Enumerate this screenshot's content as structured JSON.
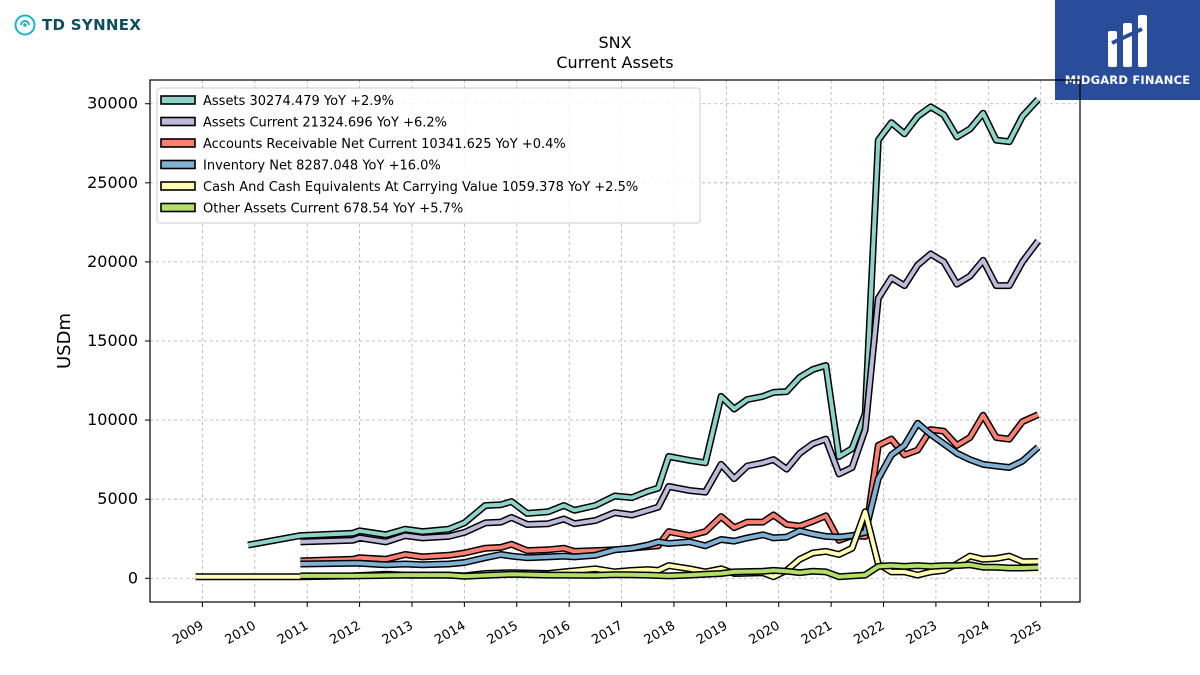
{
  "brand": {
    "name": "TD SYNNEX",
    "icon": "td-synnex-logo-icon"
  },
  "badge": {
    "name": "MIDGARD FINANCE",
    "icon": "midgard-logo-icon"
  },
  "chart_data": {
    "type": "line",
    "title": "SNX",
    "subtitle": "Current  Assets",
    "ylabel": "USDm",
    "xlabel": "",
    "xlim": [
      2008.0,
      2025.75
    ],
    "ylim": [
      -1500,
      31500
    ],
    "yticks": [
      0,
      5000,
      10000,
      15000,
      20000,
      25000,
      30000
    ],
    "xticks": [
      2009,
      2010,
      2011,
      2012,
      2013,
      2014,
      2015,
      2016,
      2017,
      2018,
      2019,
      2020,
      2021,
      2022,
      2023,
      2024,
      2025
    ],
    "grid": true,
    "legend_position": "top-left",
    "series": [
      {
        "name": "Assets",
        "legend": "Assets  30274.479 YoY +2.9%",
        "color": "#8dd3c7",
        "points": [
          [
            2009.87,
            2100
          ],
          [
            2010.87,
            2700
          ],
          [
            2011.87,
            2850
          ],
          [
            2012.0,
            3000
          ],
          [
            2012.5,
            2750
          ],
          [
            2012.87,
            3100
          ],
          [
            2013.2,
            2950
          ],
          [
            2013.7,
            3100
          ],
          [
            2014.0,
            3500
          ],
          [
            2014.4,
            4600
          ],
          [
            2014.7,
            4650
          ],
          [
            2014.9,
            4850
          ],
          [
            2015.2,
            4100
          ],
          [
            2015.6,
            4200
          ],
          [
            2015.9,
            4600
          ],
          [
            2016.1,
            4300
          ],
          [
            2016.5,
            4600
          ],
          [
            2016.87,
            5200
          ],
          [
            2017.2,
            5100
          ],
          [
            2017.5,
            5500
          ],
          [
            2017.7,
            5700
          ],
          [
            2017.9,
            7700
          ],
          [
            2018.3,
            7450
          ],
          [
            2018.6,
            7300
          ],
          [
            2018.9,
            11500
          ],
          [
            2019.15,
            10700
          ],
          [
            2019.4,
            11300
          ],
          [
            2019.7,
            11500
          ],
          [
            2019.9,
            11750
          ],
          [
            2020.15,
            11800
          ],
          [
            2020.4,
            12700
          ],
          [
            2020.65,
            13200
          ],
          [
            2020.9,
            13450
          ],
          [
            2021.15,
            7700
          ],
          [
            2021.4,
            8200
          ],
          [
            2021.65,
            10400
          ],
          [
            2021.9,
            27700
          ],
          [
            2022.15,
            28800
          ],
          [
            2022.4,
            28100
          ],
          [
            2022.65,
            29200
          ],
          [
            2022.9,
            29800
          ],
          [
            2023.15,
            29300
          ],
          [
            2023.4,
            27900
          ],
          [
            2023.65,
            28400
          ],
          [
            2023.9,
            29400
          ],
          [
            2024.15,
            27700
          ],
          [
            2024.4,
            27600
          ],
          [
            2024.65,
            29200
          ],
          [
            2024.95,
            30274
          ]
        ]
      },
      {
        "name": "Assets Current",
        "legend": "Assets Current  21324.696 YoY +6.2%",
        "color": "#bebada",
        "points": [
          [
            2010.87,
            2300
          ],
          [
            2011.87,
            2400
          ],
          [
            2012.0,
            2550
          ],
          [
            2012.5,
            2300
          ],
          [
            2012.87,
            2700
          ],
          [
            2013.2,
            2550
          ],
          [
            2013.7,
            2650
          ],
          [
            2014.0,
            2900
          ],
          [
            2014.4,
            3500
          ],
          [
            2014.7,
            3550
          ],
          [
            2014.9,
            3850
          ],
          [
            2015.2,
            3400
          ],
          [
            2015.6,
            3450
          ],
          [
            2015.9,
            3750
          ],
          [
            2016.1,
            3450
          ],
          [
            2016.5,
            3650
          ],
          [
            2016.87,
            4150
          ],
          [
            2017.2,
            4000
          ],
          [
            2017.5,
            4300
          ],
          [
            2017.7,
            4500
          ],
          [
            2017.9,
            5800
          ],
          [
            2018.3,
            5550
          ],
          [
            2018.6,
            5450
          ],
          [
            2018.9,
            7200
          ],
          [
            2019.15,
            6300
          ],
          [
            2019.4,
            7100
          ],
          [
            2019.7,
            7300
          ],
          [
            2019.9,
            7500
          ],
          [
            2020.15,
            6900
          ],
          [
            2020.4,
            7900
          ],
          [
            2020.65,
            8500
          ],
          [
            2020.9,
            8800
          ],
          [
            2021.15,
            6600
          ],
          [
            2021.4,
            7000
          ],
          [
            2021.65,
            9400
          ],
          [
            2021.9,
            17700
          ],
          [
            2022.15,
            19000
          ],
          [
            2022.4,
            18500
          ],
          [
            2022.65,
            19800
          ],
          [
            2022.9,
            20500
          ],
          [
            2023.15,
            20000
          ],
          [
            2023.4,
            18600
          ],
          [
            2023.65,
            19100
          ],
          [
            2023.9,
            20100
          ],
          [
            2024.15,
            18500
          ],
          [
            2024.4,
            18500
          ],
          [
            2024.65,
            20000
          ],
          [
            2024.95,
            21324
          ]
        ]
      },
      {
        "name": "Accounts Receivable Net Current",
        "legend": "Accounts Receivable Net Current  10341.625 YoY +0.4%",
        "color": "#fb8072",
        "points": [
          [
            2010.87,
            1100
          ],
          [
            2011.87,
            1200
          ],
          [
            2012.0,
            1300
          ],
          [
            2012.5,
            1200
          ],
          [
            2012.87,
            1500
          ],
          [
            2013.2,
            1350
          ],
          [
            2013.7,
            1450
          ],
          [
            2014.0,
            1600
          ],
          [
            2014.4,
            1900
          ],
          [
            2014.7,
            1950
          ],
          [
            2014.9,
            2150
          ],
          [
            2015.2,
            1750
          ],
          [
            2015.6,
            1800
          ],
          [
            2015.9,
            1900
          ],
          [
            2016.1,
            1700
          ],
          [
            2016.5,
            1750
          ],
          [
            2016.87,
            1800
          ],
          [
            2017.2,
            1900
          ],
          [
            2017.5,
            2000
          ],
          [
            2017.7,
            2050
          ],
          [
            2017.9,
            2950
          ],
          [
            2018.3,
            2700
          ],
          [
            2018.6,
            2950
          ],
          [
            2018.9,
            3900
          ],
          [
            2019.15,
            3200
          ],
          [
            2019.4,
            3550
          ],
          [
            2019.7,
            3550
          ],
          [
            2019.9,
            4000
          ],
          [
            2020.15,
            3400
          ],
          [
            2020.4,
            3300
          ],
          [
            2020.65,
            3600
          ],
          [
            2020.9,
            3950
          ],
          [
            2021.15,
            2400
          ],
          [
            2021.4,
            2700
          ],
          [
            2021.65,
            2650
          ],
          [
            2021.9,
            8400
          ],
          [
            2022.15,
            8800
          ],
          [
            2022.4,
            7800
          ],
          [
            2022.65,
            8100
          ],
          [
            2022.9,
            9400
          ],
          [
            2023.15,
            9300
          ],
          [
            2023.4,
            8400
          ],
          [
            2023.65,
            8900
          ],
          [
            2023.9,
            10300
          ],
          [
            2024.15,
            8900
          ],
          [
            2024.4,
            8800
          ],
          [
            2024.65,
            9900
          ],
          [
            2024.95,
            10342
          ]
        ]
      },
      {
        "name": "Inventory Net",
        "legend": "Inventory Net  8287.048 YoY +16.0%",
        "color": "#80b1d3",
        "points": [
          [
            2010.87,
            900
          ],
          [
            2011.87,
            950
          ],
          [
            2012.0,
            950
          ],
          [
            2012.5,
            850
          ],
          [
            2012.87,
            900
          ],
          [
            2013.2,
            850
          ],
          [
            2013.7,
            900
          ],
          [
            2014.0,
            1000
          ],
          [
            2014.4,
            1300
          ],
          [
            2014.7,
            1500
          ],
          [
            2014.9,
            1400
          ],
          [
            2015.2,
            1300
          ],
          [
            2015.6,
            1350
          ],
          [
            2015.9,
            1400
          ],
          [
            2016.1,
            1350
          ],
          [
            2016.5,
            1450
          ],
          [
            2016.87,
            1800
          ],
          [
            2017.2,
            1900
          ],
          [
            2017.5,
            2100
          ],
          [
            2017.7,
            2300
          ],
          [
            2017.9,
            2200
          ],
          [
            2018.3,
            2300
          ],
          [
            2018.6,
            2050
          ],
          [
            2018.9,
            2450
          ],
          [
            2019.15,
            2350
          ],
          [
            2019.4,
            2550
          ],
          [
            2019.7,
            2750
          ],
          [
            2019.9,
            2550
          ],
          [
            2020.15,
            2600
          ],
          [
            2020.4,
            3000
          ],
          [
            2020.65,
            2800
          ],
          [
            2020.9,
            2650
          ],
          [
            2021.15,
            2600
          ],
          [
            2021.4,
            2700
          ],
          [
            2021.65,
            2900
          ],
          [
            2021.9,
            6300
          ],
          [
            2022.15,
            7800
          ],
          [
            2022.4,
            8400
          ],
          [
            2022.65,
            9800
          ],
          [
            2022.9,
            9100
          ],
          [
            2023.15,
            8500
          ],
          [
            2023.4,
            7900
          ],
          [
            2023.65,
            7500
          ],
          [
            2023.9,
            7200
          ],
          [
            2024.15,
            7100
          ],
          [
            2024.4,
            7000
          ],
          [
            2024.65,
            7400
          ],
          [
            2024.95,
            8287
          ]
        ]
      },
      {
        "name": "Cash And Cash Equivalents At Carrying Value",
        "legend": "Cash And Cash Equivalents At Carrying Value  1059.378 YoY +2.5%",
        "color": "#ffffb3",
        "points": [
          [
            2008.87,
            100
          ],
          [
            2009.87,
            100
          ],
          [
            2010.87,
            100
          ],
          [
            2011.87,
            150
          ],
          [
            2012.5,
            250
          ],
          [
            2012.87,
            200
          ],
          [
            2013.7,
            200
          ],
          [
            2014.0,
            150
          ],
          [
            2014.4,
            300
          ],
          [
            2014.9,
            350
          ],
          [
            2015.6,
            300
          ],
          [
            2015.9,
            400
          ],
          [
            2016.5,
            600
          ],
          [
            2016.87,
            400
          ],
          [
            2017.2,
            500
          ],
          [
            2017.5,
            550
          ],
          [
            2017.7,
            500
          ],
          [
            2017.9,
            800
          ],
          [
            2018.3,
            600
          ],
          [
            2018.6,
            400
          ],
          [
            2018.9,
            600
          ],
          [
            2019.15,
            300
          ],
          [
            2019.7,
            350
          ],
          [
            2019.9,
            100
          ],
          [
            2020.15,
            500
          ],
          [
            2020.4,
            1200
          ],
          [
            2020.65,
            1600
          ],
          [
            2020.9,
            1700
          ],
          [
            2021.15,
            1500
          ],
          [
            2021.4,
            1900
          ],
          [
            2021.65,
            4200
          ],
          [
            2021.9,
            900
          ],
          [
            2022.15,
            400
          ],
          [
            2022.4,
            400
          ],
          [
            2022.65,
            200
          ],
          [
            2022.9,
            400
          ],
          [
            2023.15,
            500
          ],
          [
            2023.4,
            900
          ],
          [
            2023.65,
            1400
          ],
          [
            2023.9,
            1200
          ],
          [
            2024.15,
            1250
          ],
          [
            2024.4,
            1400
          ],
          [
            2024.65,
            1050
          ],
          [
            2024.95,
            1059
          ]
        ]
      },
      {
        "name": "Other Assets Current",
        "legend": "Other Assets Current  678.54 YoY +5.7%",
        "color": "#b3de69",
        "points": [
          [
            2010.87,
            150
          ],
          [
            2011.87,
            150
          ],
          [
            2012.5,
            180
          ],
          [
            2012.87,
            200
          ],
          [
            2013.7,
            200
          ],
          [
            2014.0,
            130
          ],
          [
            2014.4,
            180
          ],
          [
            2014.9,
            250
          ],
          [
            2015.6,
            200
          ],
          [
            2015.9,
            200
          ],
          [
            2016.5,
            180
          ],
          [
            2016.87,
            230
          ],
          [
            2017.5,
            200
          ],
          [
            2017.9,
            150
          ],
          [
            2018.3,
            200
          ],
          [
            2018.6,
            250
          ],
          [
            2018.9,
            300
          ],
          [
            2019.15,
            400
          ],
          [
            2019.7,
            450
          ],
          [
            2019.9,
            500
          ],
          [
            2020.15,
            450
          ],
          [
            2020.4,
            350
          ],
          [
            2020.65,
            450
          ],
          [
            2020.9,
            400
          ],
          [
            2021.15,
            100
          ],
          [
            2021.4,
            150
          ],
          [
            2021.65,
            200
          ],
          [
            2021.9,
            750
          ],
          [
            2022.15,
            800
          ],
          [
            2022.4,
            750
          ],
          [
            2022.65,
            800
          ],
          [
            2022.9,
            750
          ],
          [
            2023.15,
            800
          ],
          [
            2023.4,
            800
          ],
          [
            2023.65,
            850
          ],
          [
            2023.9,
            700
          ],
          [
            2024.15,
            700
          ],
          [
            2024.4,
            650
          ],
          [
            2024.65,
            650
          ],
          [
            2024.95,
            679
          ]
        ]
      }
    ]
  }
}
